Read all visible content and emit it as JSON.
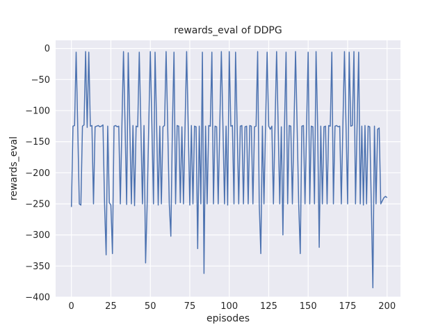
{
  "chart_data": {
    "type": "line",
    "title": "rewards_eval of DDPG",
    "xlabel": "episodes",
    "ylabel": "rewards_eval",
    "legend": "none",
    "grid": true,
    "style": "seaborn-darkgrid",
    "line_color": "#4c72b0",
    "plot_bg": "#eaeaf2",
    "grid_color": "#ffffff",
    "text_color": "#262626",
    "xlim": [
      -10,
      208.5
    ],
    "ylim": [
      -400,
      13
    ],
    "x_ticks": [
      0,
      25,
      50,
      75,
      100,
      125,
      150,
      175,
      200
    ],
    "y_ticks": [
      0,
      -50,
      -100,
      -150,
      -200,
      -250,
      -300,
      -350,
      -400
    ],
    "x_start": 0,
    "x_step": 1,
    "values": [
      -255,
      -125,
      -124,
      -6,
      -126,
      -250,
      -252,
      -125,
      -123,
      -5,
      -127,
      -6,
      -125,
      -124,
      -250,
      -126,
      -125,
      -124,
      -126,
      -125,
      -123,
      -250,
      -332,
      -125,
      -248,
      -252,
      -330,
      -125,
      -124,
      -126,
      -125,
      -250,
      -124,
      -5,
      -125,
      -251,
      -7,
      -125,
      -250,
      -124,
      -253,
      -125,
      -126,
      -6,
      -125,
      -250,
      -124,
      -345,
      -250,
      -125,
      -5,
      -124,
      -250,
      -6,
      -125,
      -252,
      -125,
      -250,
      -126,
      -124,
      -5,
      -125,
      -250,
      -302,
      -125,
      -6,
      -250,
      -124,
      -125,
      -248,
      -126,
      -250,
      -125,
      -5,
      -125,
      -252,
      -124,
      -250,
      -125,
      -126,
      -322,
      -125,
      -250,
      -6,
      -362,
      -125,
      -250,
      -124,
      -125,
      -6,
      -250,
      -125,
      -126,
      -250,
      -124,
      -5,
      -125,
      -250,
      -125,
      -252,
      -5,
      -125,
      -124,
      -250,
      -6,
      -125,
      -250,
      -125,
      -124,
      -250,
      -126,
      -125,
      -250,
      -124,
      -125,
      -250,
      -126,
      -125,
      -5,
      -250,
      -330,
      -125,
      -250,
      -124,
      -6,
      -125,
      -130,
      -125,
      -250,
      -124,
      -5,
      -125,
      -250,
      -126,
      -300,
      -125,
      -6,
      -250,
      -124,
      -125,
      -250,
      -126,
      -5,
      -125,
      -250,
      -330,
      -125,
      -124,
      -250,
      -125,
      -6,
      -250,
      -125,
      -126,
      -250,
      -5,
      -124,
      -320,
      -125,
      -250,
      -126,
      -125,
      -250,
      -124,
      -125,
      -6,
      -250,
      -125,
      -124,
      -126,
      -125,
      -250,
      -124,
      -5,
      -125,
      -250,
      -6,
      -125,
      -124,
      -5,
      -250,
      -125,
      -6,
      -250,
      -125,
      -252,
      -124,
      -250,
      -125,
      -126,
      -250,
      -385,
      -125,
      -250,
      -130,
      -128,
      -250,
      -245,
      -240,
      -238,
      -240
    ]
  }
}
